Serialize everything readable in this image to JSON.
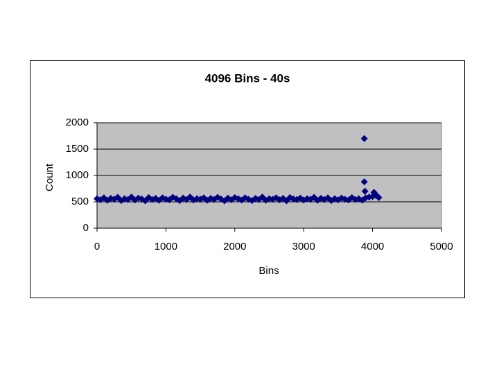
{
  "chart_data": {
    "type": "scatter",
    "title": "4096 Bins - 40s",
    "x_label": "Bins",
    "y_label": "Count",
    "series": [
      {
        "name": "Count",
        "color": "#000080",
        "x": [
          0,
          50,
          100,
          150,
          200,
          250,
          300,
          350,
          400,
          450,
          500,
          550,
          600,
          650,
          700,
          750,
          800,
          850,
          900,
          950,
          1000,
          1050,
          1100,
          1150,
          1200,
          1250,
          1300,
          1350,
          1400,
          1450,
          1500,
          1550,
          1600,
          1650,
          1700,
          1750,
          1800,
          1850,
          1900,
          1950,
          2000,
          2050,
          2100,
          2150,
          2200,
          2250,
          2300,
          2350,
          2400,
          2450,
          2500,
          2550,
          2600,
          2650,
          2700,
          2750,
          2800,
          2850,
          2900,
          2950,
          3000,
          3050,
          3100,
          3150,
          3200,
          3250,
          3300,
          3350,
          3400,
          3450,
          3500,
          3550,
          3600,
          3650,
          3700,
          3750,
          3800,
          3850,
          3900,
          3950,
          4000,
          4050,
          3880,
          3880,
          3890,
          4020,
          4060,
          4090
        ],
        "values": [
          560,
          540,
          575,
          530,
          565,
          550,
          585,
          525,
          560,
          545,
          590,
          535,
          570,
          555,
          520,
          580,
          545,
          565,
          530,
          575,
          550,
          540,
          585,
          560,
          525,
          570,
          545,
          590,
          535,
          560,
          550,
          575,
          530,
          565,
          545,
          585,
          555,
          520,
          570,
          540,
          580,
          560,
          535,
          575,
          550,
          525,
          565,
          545,
          590,
          530,
          560,
          550,
          575,
          540,
          565,
          520,
          580,
          555,
          545,
          570,
          535,
          560,
          550,
          585,
          530,
          565,
          545,
          575,
          525,
          560,
          540,
          570,
          550,
          535,
          580,
          545,
          560,
          530,
          575,
          590,
          600,
          620,
          1700,
          880,
          700,
          680,
          620,
          580
        ]
      }
    ],
    "xlim": [
      0,
      5000
    ],
    "xticks": [
      0,
      1000,
      2000,
      3000,
      4000,
      5000
    ],
    "ylim": [
      0,
      2000
    ],
    "yticks": [
      0,
      500,
      1000,
      1500,
      2000
    ],
    "grid": true,
    "plot_background": "#c0c0c0"
  }
}
